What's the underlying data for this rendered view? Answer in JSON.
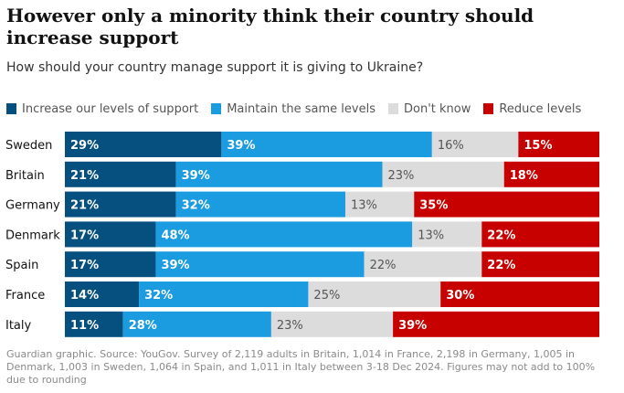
{
  "title": "However only a minority think their country should increase support",
  "subtitle": "How should your country manage support it is giving to Ukraine?",
  "colors": {
    "increase": "#05507f",
    "maintain": "#1b9be0",
    "dont_know": "#dcdcdc",
    "reduce": "#c70000"
  },
  "footnote": "Guardian graphic. Source: YouGov. Survey of 2,119 adults in Britain, 1,014 in France, 2,198 in Germany, 1,005 in Denmark, 1,003 in Sweden, 1,064 in Spain, and 1,011 in Italy between 3-18 Dec 2024. Figures may not add to 100% due to rounding",
  "chart_data": {
    "type": "bar",
    "stacked": true,
    "orientation": "horizontal",
    "title": "However only a minority think their country should increase support",
    "subtitle": "How should your country manage support it is giving to Ukraine?",
    "categories": [
      "Sweden",
      "Britain",
      "Germany",
      "Denmark",
      "Spain",
      "France",
      "Italy"
    ],
    "series": [
      {
        "name": "Increase our levels of support",
        "color_key": "increase",
        "values": [
          29,
          21,
          21,
          17,
          17,
          14,
          11
        ]
      },
      {
        "name": "Maintain the same levels",
        "color_key": "maintain",
        "values": [
          39,
          39,
          32,
          48,
          39,
          32,
          28
        ]
      },
      {
        "name": "Don't know",
        "color_key": "dont_know",
        "values": [
          16,
          23,
          13,
          13,
          22,
          25,
          23
        ]
      },
      {
        "name": "Reduce levels",
        "color_key": "reduce",
        "values": [
          15,
          18,
          35,
          22,
          22,
          30,
          39
        ]
      }
    ],
    "value_suffix": "%",
    "legend_position": "top"
  }
}
